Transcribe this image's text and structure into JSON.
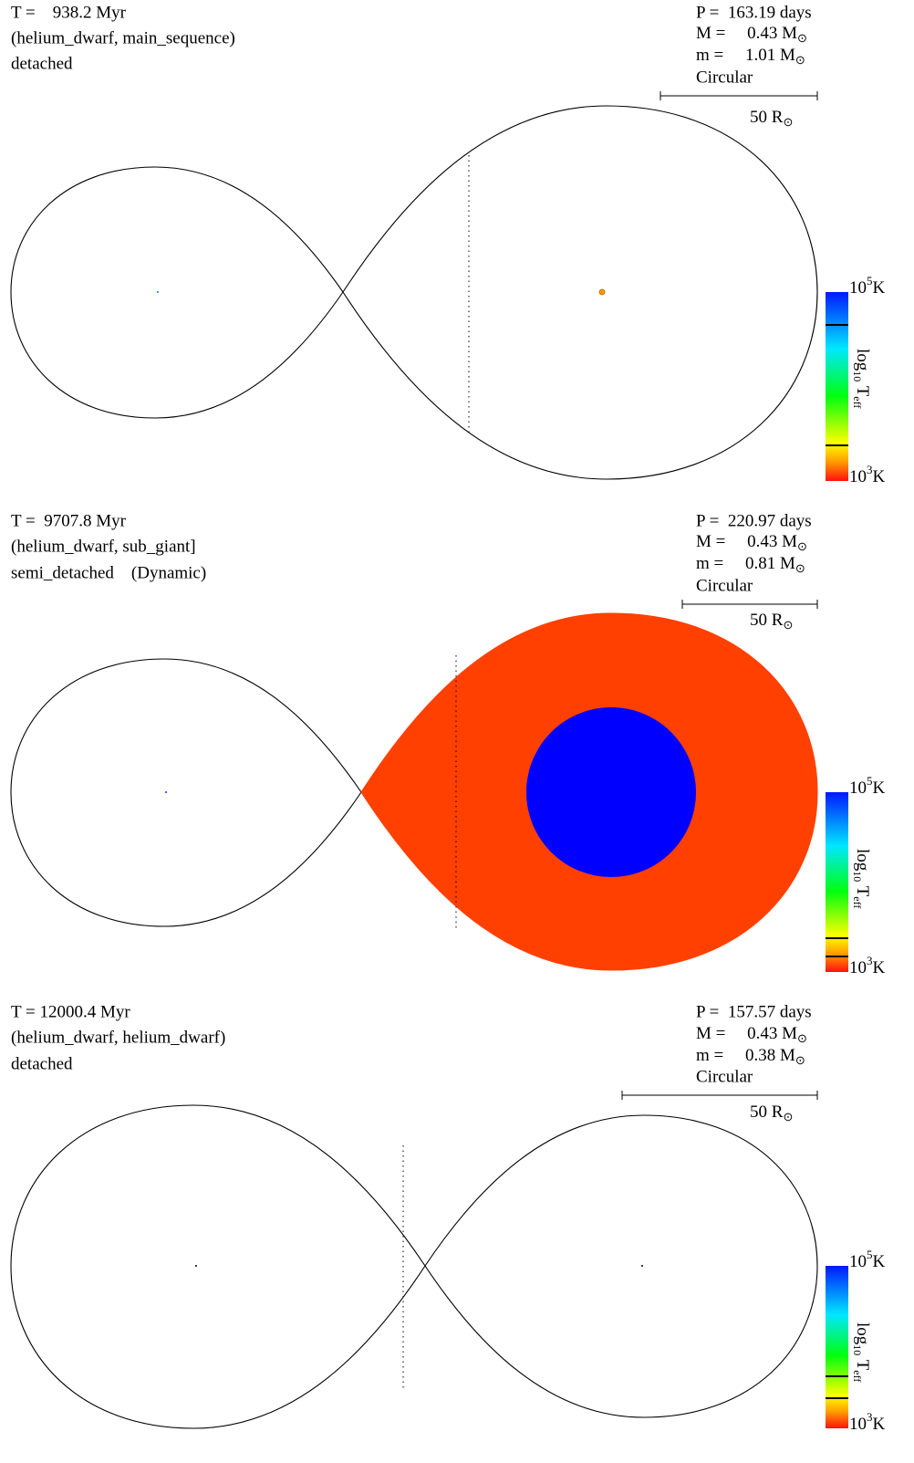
{
  "panels": [
    {
      "time": "T =    938.2 Myr",
      "stars": "(helium_dwarf, main_sequence)",
      "state": "detached",
      "period": "P =  163.19 days",
      "mass_primary": {
        "text": "M =     0.43 M",
        "sub": "⊙"
      },
      "mass_secondary": {
        "text": "m =     1.01 M",
        "sub": "⊙"
      },
      "orbit": "Circular",
      "scale": {
        "text": "50 R",
        "sub": "⊙"
      },
      "colorbar": {
        "top": {
          "base": "10",
          "exp": "5",
          "unit": "K"
        },
        "title": {
          "log": "log",
          "base": "10",
          "symbol": " T",
          "sub": "eff"
        },
        "bottom": {
          "base": "10",
          "exp": "3",
          "unit": "K"
        }
      }
    },
    {
      "time": "T =  9707.8 Myr",
      "stars": "(helium_dwarf, sub_giant]",
      "state": "semi_detached    (Dynamic)",
      "period": "P =  220.97 days",
      "mass_primary": {
        "text": "M =     0.43 M",
        "sub": "⊙"
      },
      "mass_secondary": {
        "text": "m =     0.81 M",
        "sub": "⊙"
      },
      "orbit": "Circular",
      "scale": {
        "text": "50 R",
        "sub": "⊙"
      },
      "colorbar": {
        "top": {
          "base": "10",
          "exp": "5",
          "unit": "K"
        },
        "title": {
          "log": "log",
          "base": "10",
          "symbol": " T",
          "sub": "eff"
        },
        "bottom": {
          "base": "10",
          "exp": "3",
          "unit": "K"
        }
      }
    },
    {
      "time": "T = 12000.4 Myr",
      "stars": "(helium_dwarf, helium_dwarf)",
      "state": "detached",
      "period": "P =  157.57 days",
      "mass_primary": {
        "text": "M =     0.43 M",
        "sub": "⊙"
      },
      "mass_secondary": {
        "text": "m =     0.38 M",
        "sub": "⊙"
      },
      "orbit": "Circular",
      "scale": {
        "text": "50 R",
        "sub": "⊙"
      },
      "colorbar": {
        "top": {
          "base": "10",
          "exp": "5",
          "unit": "K"
        },
        "title": {
          "log": "log",
          "base": "10",
          "symbol": " T",
          "sub": "eff"
        },
        "bottom": {
          "base": "10",
          "exp": "3",
          "unit": "K"
        }
      }
    }
  ]
}
